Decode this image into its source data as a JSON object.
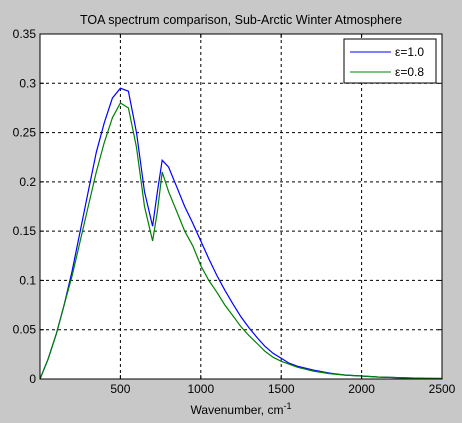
{
  "chart_data": {
    "type": "line",
    "title": "TOA spectrum comparison, Sub-Arctic Winter Atmosphere",
    "xlabel": "Wavenumber, cm",
    "xlabel_superscript": "-1",
    "ylabel": "",
    "xlim": [
      0,
      2500
    ],
    "ylim": [
      0,
      0.35
    ],
    "xticks": [
      500,
      1000,
      1500,
      2000,
      2500
    ],
    "yticks": [
      0,
      0.05,
      0.1,
      0.15,
      0.2,
      0.25,
      0.3,
      0.35
    ],
    "xtick_labels": [
      "500",
      "1000",
      "1500",
      "2000",
      "2500"
    ],
    "ytick_labels": [
      "0",
      "0.05",
      "0.1",
      "0.15",
      "0.2",
      "0.25",
      "0.3",
      "0.35"
    ],
    "grid": true,
    "legend_position": "top-right",
    "series": [
      {
        "name": "ε=1.0",
        "color": "#0000ff",
        "x": [
          0,
          50,
          100,
          150,
          200,
          250,
          300,
          350,
          400,
          450,
          500,
          550,
          600,
          650,
          700,
          730,
          760,
          800,
          850,
          900,
          950,
          1000,
          1050,
          1100,
          1150,
          1200,
          1250,
          1300,
          1350,
          1400,
          1450,
          1500,
          1550,
          1600,
          1700,
          1800,
          1900,
          2000,
          2100,
          2200,
          2300,
          2400,
          2500
        ],
        "values": [
          0,
          0.02,
          0.045,
          0.075,
          0.11,
          0.15,
          0.19,
          0.23,
          0.26,
          0.285,
          0.295,
          0.292,
          0.25,
          0.19,
          0.155,
          0.19,
          0.222,
          0.215,
          0.195,
          0.175,
          0.158,
          0.14,
          0.122,
          0.105,
          0.09,
          0.076,
          0.063,
          0.052,
          0.042,
          0.033,
          0.026,
          0.021,
          0.016,
          0.013,
          0.009,
          0.006,
          0.004,
          0.003,
          0.002,
          0.0015,
          0.001,
          0.0007,
          0.0005
        ]
      },
      {
        "name": "ε=0.8",
        "color": "#008000",
        "x": [
          0,
          50,
          100,
          150,
          200,
          250,
          300,
          350,
          400,
          450,
          500,
          550,
          600,
          650,
          700,
          730,
          760,
          800,
          850,
          900,
          950,
          1000,
          1050,
          1100,
          1150,
          1200,
          1250,
          1300,
          1350,
          1400,
          1450,
          1500,
          1550,
          1600,
          1700,
          1800,
          1900,
          2000,
          2100,
          2200,
          2300,
          2400,
          2500
        ],
        "values": [
          0,
          0.02,
          0.045,
          0.075,
          0.105,
          0.14,
          0.175,
          0.21,
          0.24,
          0.265,
          0.28,
          0.275,
          0.235,
          0.175,
          0.14,
          0.17,
          0.21,
          0.19,
          0.17,
          0.15,
          0.135,
          0.115,
          0.1,
          0.088,
          0.075,
          0.064,
          0.053,
          0.044,
          0.036,
          0.028,
          0.022,
          0.018,
          0.015,
          0.012,
          0.008,
          0.0055,
          0.004,
          0.003,
          0.002,
          0.0015,
          0.001,
          0.0007,
          0.0005
        ]
      }
    ]
  }
}
